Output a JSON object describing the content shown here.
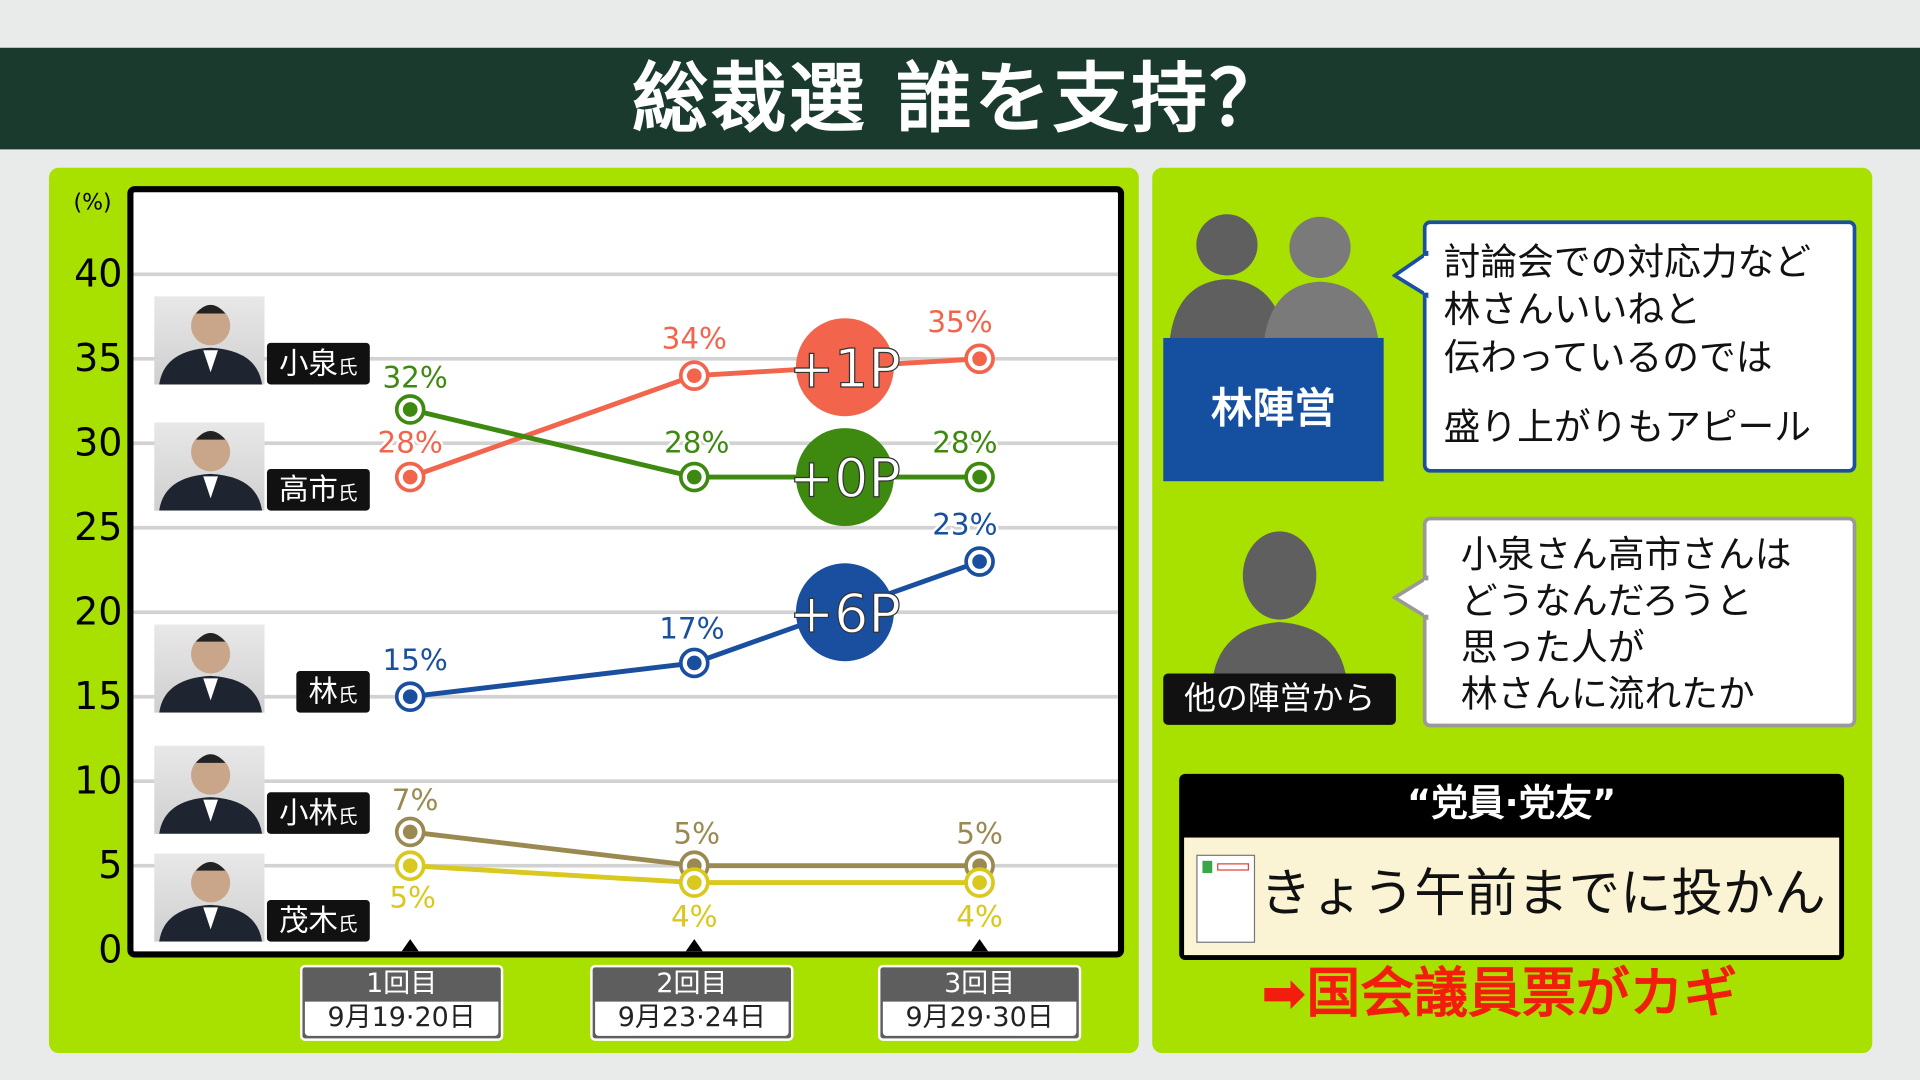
{
  "title": "総裁選 誰を支持？",
  "chart_data": {
    "type": "line",
    "title": "総裁選 誰を支持？",
    "ylabel": "(%)",
    "ylim": [
      0,
      40
    ],
    "yticks": [
      0,
      5,
      10,
      15,
      20,
      25,
      30,
      35,
      40
    ],
    "grid": true,
    "categories": [
      {
        "round": "1回目",
        "dates": "9月19·20日"
      },
      {
        "round": "2回目",
        "dates": "9月23·24日"
      },
      {
        "round": "3回目",
        "dates": "9月29·30日"
      }
    ],
    "series": [
      {
        "name": "小泉氏",
        "surname": "小泉",
        "suffix": "氏",
        "color": "#f2654c",
        "values": [
          28,
          34,
          35
        ],
        "labels": [
          "28%",
          "34%",
          "35%"
        ],
        "change": "+1P"
      },
      {
        "name": "高市氏",
        "surname": "高市",
        "suffix": "氏",
        "color": "#3e8a10",
        "values": [
          32,
          28,
          28
        ],
        "labels": [
          "32%",
          "28%",
          "28%"
        ],
        "change": "+0P"
      },
      {
        "name": "林氏",
        "surname": "林",
        "suffix": "氏",
        "color": "#1a4fa0",
        "values": [
          15,
          17,
          23
        ],
        "labels": [
          "15%",
          "17%",
          "23%"
        ],
        "change": "+6P"
      },
      {
        "name": "小林氏",
        "surname": "小林",
        "suffix": "氏",
        "color": "#9a8a52",
        "values": [
          7,
          5,
          5
        ],
        "labels": [
          "7%",
          "5%",
          "5%"
        ]
      },
      {
        "name": "茂木氏",
        "surname": "茂木",
        "suffix": "氏",
        "color": "#d9c81e",
        "values": [
          5,
          4,
          4
        ],
        "labels": [
          "5%",
          "4%",
          "4%"
        ]
      }
    ]
  },
  "right": {
    "camp1_label": "林陣営",
    "camp1_quote": [
      "討論会での対応力など",
      "林さんいいねと",
      "伝わっているのでは",
      "盛り上がりもアピール"
    ],
    "camp2_label": "他の陣営から",
    "camp2_quote": [
      "小泉さん高市さんは",
      "どうなんだろうと",
      "思った人が",
      "林さんに流れたか"
    ],
    "members_header": "“党員·党友”",
    "members_text": "きょう午前までに投かん",
    "conclusion": "国会議員票がカギ",
    "arrow": "➡"
  }
}
